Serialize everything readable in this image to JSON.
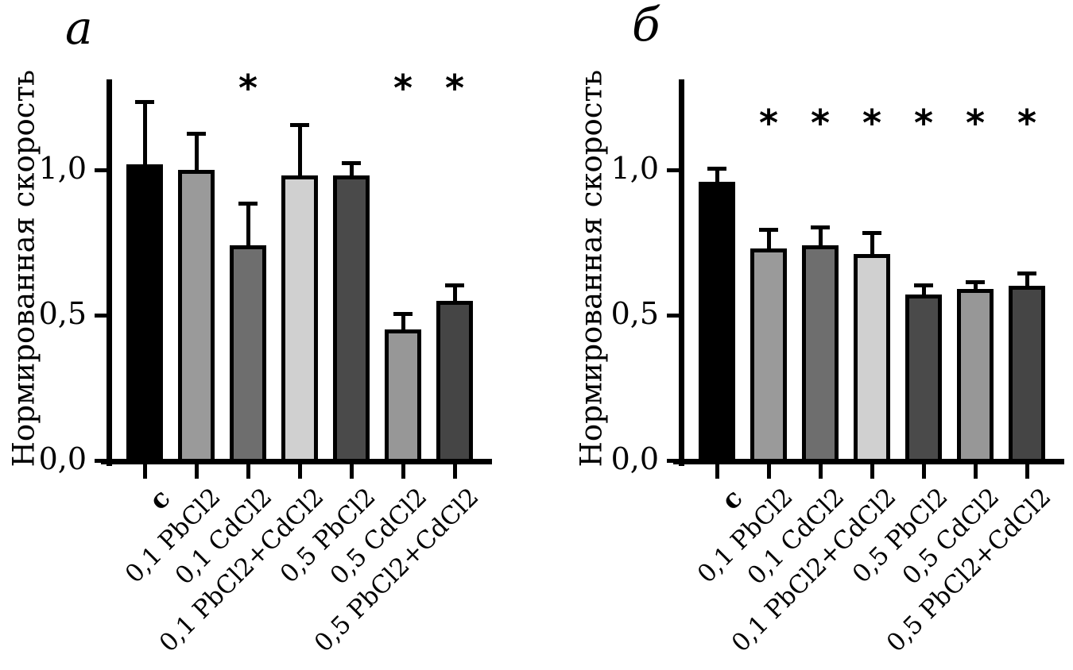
{
  "figure": {
    "background_color": "#ffffff",
    "text_color": "#000000"
  },
  "chart_data": [
    {
      "type": "bar",
      "title": "а",
      "ylabel": "Нормированная скорость",
      "xlabel": "",
      "categories": [
        "с",
        "0,1 PbCl2",
        "0,1 CdCl2",
        "0,1 PbCl2+CdCl2",
        "0,5 PbCl2",
        "0,5 CdCl2",
        "0,5 PbCl2+CdCl2"
      ],
      "values": [
        1.02,
        1.0,
        0.74,
        0.98,
        0.98,
        0.45,
        0.55
      ],
      "errors_upper": [
        0.22,
        0.13,
        0.15,
        0.18,
        0.05,
        0.06,
        0.06
      ],
      "significant": [
        false,
        false,
        true,
        false,
        false,
        true,
        true
      ],
      "significance_marker": "*",
      "bar_colors": [
        "#000000",
        "#9a9a9a",
        "#6e6e6e",
        "#d0d0d0",
        "#4a4a4a",
        "#979797",
        "#454545"
      ],
      "bar_border_color": "#000000",
      "yticks": [
        {
          "value": 0.0,
          "label": "0,0"
        },
        {
          "value": 0.5,
          "label": "0,5"
        },
        {
          "value": 1.0,
          "label": "1,0"
        }
      ],
      "ylim": [
        0,
        1.31
      ],
      "grid": false,
      "legend": "none",
      "control_category_bold": true
    },
    {
      "type": "bar",
      "title": "б",
      "ylabel": "Нормированная скорость",
      "xlabel": "",
      "categories": [
        "с",
        "0,1 PbCl2",
        "0,1 CdCl2",
        "0,1 PbCl2+CdCl2",
        "0,5 PbCl2",
        "0,5 CdCl2",
        "0,5 PbCl2+CdCl2"
      ],
      "values": [
        0.96,
        0.73,
        0.74,
        0.71,
        0.57,
        0.59,
        0.6
      ],
      "errors_upper": [
        0.05,
        0.07,
        0.07,
        0.08,
        0.04,
        0.03,
        0.05
      ],
      "significant": [
        false,
        true,
        true,
        true,
        true,
        true,
        true
      ],
      "significance_marker": "*",
      "bar_colors": [
        "#000000",
        "#9a9a9a",
        "#6e6e6e",
        "#d0d0d0",
        "#4a4a4a",
        "#979797",
        "#454545"
      ],
      "bar_border_color": "#000000",
      "yticks": [
        {
          "value": 0.0,
          "label": "0,0"
        },
        {
          "value": 0.5,
          "label": "0,5"
        },
        {
          "value": 1.0,
          "label": "1,0"
        }
      ],
      "ylim": [
        0,
        1.31
      ],
      "grid": false,
      "legend": "none",
      "control_category_bold": true
    }
  ]
}
